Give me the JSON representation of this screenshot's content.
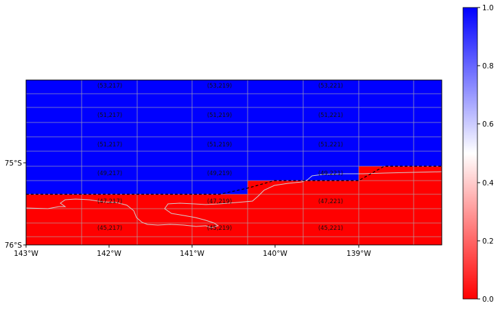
{
  "map": {
    "x_axis": {
      "ticks": [
        {
          "value": -143,
          "label": "143°W"
        },
        {
          "value": -142,
          "label": "142°W"
        },
        {
          "value": -141,
          "label": "141°W"
        },
        {
          "value": -140,
          "label": "140°W"
        },
        {
          "value": -139,
          "label": "139°W"
        }
      ]
    },
    "y_axis": {
      "ticks": [
        {
          "value": -75,
          "label": "75°S"
        },
        {
          "value": -76,
          "label": "76°S"
        }
      ]
    },
    "cell_labels": [
      {
        "text": "(53,217)"
      },
      {
        "text": "(53,219)"
      },
      {
        "text": "(53,221)"
      },
      {
        "text": "(51,217)"
      },
      {
        "text": "(51,219)"
      },
      {
        "text": "(51,221)"
      },
      {
        "text": "(51,217)"
      },
      {
        "text": "(51,219)"
      },
      {
        "text": "(51,221)"
      },
      {
        "text": "(49,217)"
      },
      {
        "text": "(49,219)"
      },
      {
        "text": "(49,221)"
      },
      {
        "text": "(47,217)"
      },
      {
        "text": "(47,219)"
      },
      {
        "text": "(47,221)"
      },
      {
        "text": "(45,217)"
      },
      {
        "text": "(45,219)"
      },
      {
        "text": "(45,221)"
      }
    ],
    "colors": {
      "high": "#0000ff",
      "low": "#ff0000",
      "mid": "#ffffff",
      "grid": "#b0b0b0",
      "coastline": "#d3d3d3",
      "boundary": "#000000"
    }
  },
  "colorbar": {
    "range": [
      0.0,
      1.0
    ],
    "ticks": [
      "0.0",
      "0.2",
      "0.4",
      "0.6",
      "0.8",
      "1.0"
    ]
  }
}
